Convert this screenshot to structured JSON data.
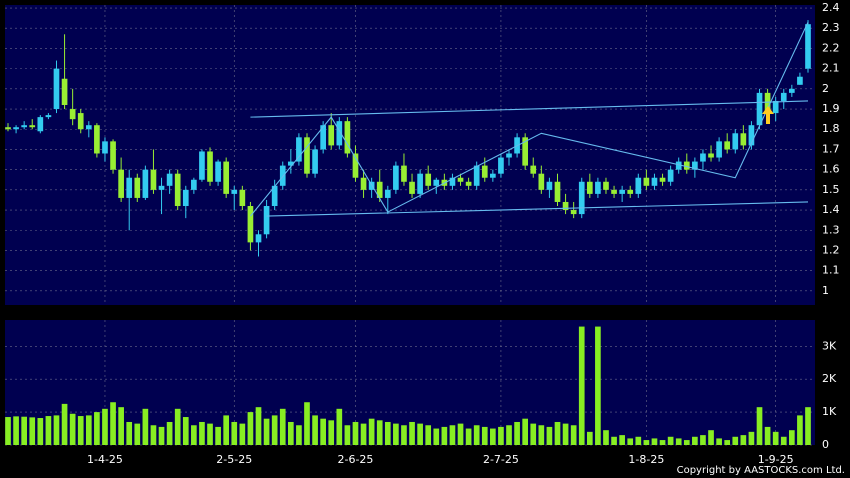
{
  "chart_data": {
    "type": "candlestick",
    "categories": [
      null,
      null,
      null,
      null,
      null,
      null,
      null,
      null,
      null,
      null,
      null,
      null,
      "1-4-25",
      null,
      null,
      null,
      null,
      null,
      null,
      null,
      null,
      null,
      null,
      null,
      null,
      null,
      null,
      null,
      "2-5-25",
      null,
      null,
      null,
      null,
      null,
      null,
      null,
      null,
      null,
      null,
      null,
      null,
      null,
      null,
      "2-6-25",
      null,
      null,
      null,
      null,
      null,
      null,
      null,
      null,
      null,
      null,
      null,
      null,
      null,
      null,
      null,
      null,
      null,
      "2-7-25",
      null,
      null,
      null,
      null,
      null,
      null,
      null,
      null,
      null,
      null,
      null,
      null,
      null,
      null,
      null,
      null,
      null,
      "1-8-25",
      null,
      null,
      null,
      null,
      null,
      null,
      null,
      null,
      null,
      null,
      null,
      null,
      null,
      null,
      null,
      "1-9-25",
      null,
      null,
      null,
      null
    ],
    "open": [
      1.81,
      1.8,
      1.81,
      1.82,
      1.79,
      1.86,
      1.9,
      2.05,
      1.9,
      1.88,
      1.8,
      1.82,
      1.68,
      1.74,
      1.6,
      1.46,
      1.56,
      1.46,
      1.6,
      1.5,
      1.52,
      1.58,
      1.42,
      1.5,
      1.55,
      1.69,
      1.54,
      1.64,
      1.48,
      1.5,
      1.42,
      1.24,
      1.28,
      1.42,
      1.52,
      1.62,
      1.64,
      1.76,
      1.58,
      1.7,
      1.82,
      1.72,
      1.84,
      1.68,
      1.56,
      1.5,
      1.54,
      1.46,
      1.5,
      1.62,
      1.54,
      1.48,
      1.58,
      1.52,
      1.55,
      1.52,
      1.56,
      1.54,
      1.52,
      1.62,
      1.56,
      1.58,
      1.66,
      1.68,
      1.76,
      1.62,
      1.58,
      1.5,
      1.54,
      1.44,
      1.4,
      1.38,
      1.54,
      1.48,
      1.54,
      1.5,
      1.48,
      1.5,
      1.48,
      1.56,
      1.52,
      1.56,
      1.54,
      1.6,
      1.64,
      1.6,
      1.64,
      1.68,
      1.66,
      1.74,
      1.7,
      1.78,
      1.72,
      1.82,
      1.98,
      1.88,
      1.94,
      1.98,
      2.02,
      2.1
    ],
    "high": [
      1.83,
      1.82,
      1.84,
      1.85,
      1.87,
      1.88,
      2.14,
      2.27,
      2.0,
      1.9,
      1.84,
      1.83,
      1.76,
      1.75,
      1.66,
      1.6,
      1.58,
      1.62,
      1.7,
      1.56,
      1.6,
      1.6,
      1.52,
      1.56,
      1.7,
      1.71,
      1.65,
      1.66,
      1.52,
      1.52,
      1.44,
      1.3,
      1.45,
      1.55,
      1.64,
      1.7,
      1.78,
      1.78,
      1.72,
      1.84,
      1.88,
      1.86,
      1.86,
      1.72,
      1.6,
      1.56,
      1.6,
      1.52,
      1.64,
      1.68,
      1.58,
      1.6,
      1.62,
      1.56,
      1.58,
      1.58,
      1.58,
      1.56,
      1.64,
      1.66,
      1.6,
      1.68,
      1.7,
      1.78,
      1.78,
      1.66,
      1.62,
      1.56,
      1.58,
      1.48,
      1.44,
      1.56,
      1.58,
      1.56,
      1.56,
      1.52,
      1.52,
      1.52,
      1.58,
      1.6,
      1.58,
      1.58,
      1.62,
      1.66,
      1.68,
      1.66,
      1.7,
      1.72,
      1.76,
      1.78,
      1.8,
      1.82,
      1.84,
      2.0,
      2.0,
      1.96,
      2.0,
      2.02,
      2.08,
      2.34
    ],
    "low": [
      1.79,
      1.78,
      1.8,
      1.8,
      1.78,
      1.85,
      1.88,
      1.9,
      1.82,
      1.78,
      1.76,
      1.66,
      1.64,
      1.58,
      1.44,
      1.3,
      1.44,
      1.45,
      1.48,
      1.38,
      1.48,
      1.4,
      1.36,
      1.48,
      1.54,
      1.52,
      1.52,
      1.46,
      1.4,
      1.4,
      1.2,
      1.17,
      1.26,
      1.4,
      1.5,
      1.58,
      1.62,
      1.56,
      1.56,
      1.68,
      1.7,
      1.7,
      1.66,
      1.54,
      1.46,
      1.46,
      1.44,
      1.38,
      1.48,
      1.52,
      1.46,
      1.46,
      1.5,
      1.48,
      1.5,
      1.5,
      1.52,
      1.5,
      1.5,
      1.54,
      1.54,
      1.56,
      1.62,
      1.66,
      1.6,
      1.56,
      1.48,
      1.46,
      1.42,
      1.38,
      1.36,
      1.36,
      1.46,
      1.46,
      1.48,
      1.46,
      1.44,
      1.46,
      1.46,
      1.5,
      1.5,
      1.52,
      1.52,
      1.58,
      1.58,
      1.56,
      1.6,
      1.64,
      1.64,
      1.68,
      1.68,
      1.7,
      1.7,
      1.8,
      1.86,
      1.84,
      1.9,
      1.96,
      2.02,
      2.08
    ],
    "close": [
      1.8,
      1.81,
      1.82,
      1.81,
      1.86,
      1.87,
      2.1,
      1.92,
      1.85,
      1.8,
      1.82,
      1.68,
      1.74,
      1.6,
      1.46,
      1.56,
      1.46,
      1.6,
      1.5,
      1.52,
      1.58,
      1.42,
      1.5,
      1.55,
      1.69,
      1.54,
      1.64,
      1.48,
      1.5,
      1.42,
      1.24,
      1.28,
      1.42,
      1.52,
      1.62,
      1.64,
      1.76,
      1.58,
      1.7,
      1.82,
      1.72,
      1.84,
      1.68,
      1.56,
      1.5,
      1.54,
      1.46,
      1.5,
      1.62,
      1.54,
      1.48,
      1.58,
      1.52,
      1.55,
      1.52,
      1.56,
      1.54,
      1.52,
      1.62,
      1.56,
      1.58,
      1.66,
      1.68,
      1.76,
      1.62,
      1.58,
      1.5,
      1.54,
      1.44,
      1.4,
      1.38,
      1.54,
      1.48,
      1.54,
      1.5,
      1.48,
      1.5,
      1.48,
      1.56,
      1.52,
      1.56,
      1.54,
      1.6,
      1.64,
      1.6,
      1.64,
      1.68,
      1.66,
      1.74,
      1.7,
      1.78,
      1.72,
      1.82,
      1.98,
      1.88,
      1.94,
      1.98,
      2.0,
      2.06,
      2.32
    ],
    "up_color": "#33ccf0",
    "down_color": "#99ee33",
    "ylim": [
      0.93,
      2.415
    ],
    "yticks": [
      1,
      1.1,
      1.2,
      1.3,
      1.4,
      1.5,
      1.6,
      1.7,
      1.8,
      1.9,
      2,
      2.1,
      2.2,
      2.3,
      2.4
    ],
    "grid": true,
    "overlays": [
      {
        "color": "#66bbee",
        "x": [
          30,
          99
        ],
        "y": [
          1.86,
          1.94
        ]
      },
      {
        "color": "#66bbee",
        "x": [
          32,
          99
        ],
        "y": [
          1.37,
          1.44
        ]
      },
      {
        "color": "#66bbee",
        "x": [
          30,
          40,
          47,
          66,
          90,
          99
        ],
        "y": [
          1.37,
          1.86,
          1.39,
          1.78,
          1.56,
          2.33
        ]
      }
    ],
    "volume": {
      "type": "bar",
      "color": "#88ee22",
      "values": [
        850,
        870,
        860,
        840,
        820,
        880,
        900,
        1250,
        950,
        880,
        900,
        1000,
        1100,
        1300,
        1150,
        700,
        650,
        1100,
        600,
        550,
        700,
        1100,
        850,
        600,
        700,
        650,
        550,
        900,
        700,
        650,
        1000,
        1150,
        800,
        900,
        1100,
        700,
        600,
        1300,
        900,
        800,
        750,
        1100,
        600,
        700,
        650,
        800,
        750,
        700,
        650,
        600,
        700,
        650,
        600,
        500,
        550,
        600,
        650,
        500,
        600,
        550,
        500,
        550,
        600,
        700,
        800,
        650,
        600,
        550,
        700,
        650,
        600,
        3600,
        400,
        3600,
        450,
        250,
        300,
        200,
        250,
        150,
        200,
        150,
        250,
        200,
        150,
        250,
        300,
        450,
        200,
        150,
        250,
        300,
        400,
        1150,
        550,
        400,
        250,
        450,
        900,
        1150
      ],
      "ylim": [
        0,
        3800
      ],
      "yticks": [
        0,
        {
          "value": 1000,
          "label": "1K"
        },
        {
          "value": 2000,
          "label": "2K"
        },
        {
          "value": 3000,
          "label": "3K"
        }
      ]
    },
    "credit": "Copyright by AASTOCKS.com Ltd."
  }
}
